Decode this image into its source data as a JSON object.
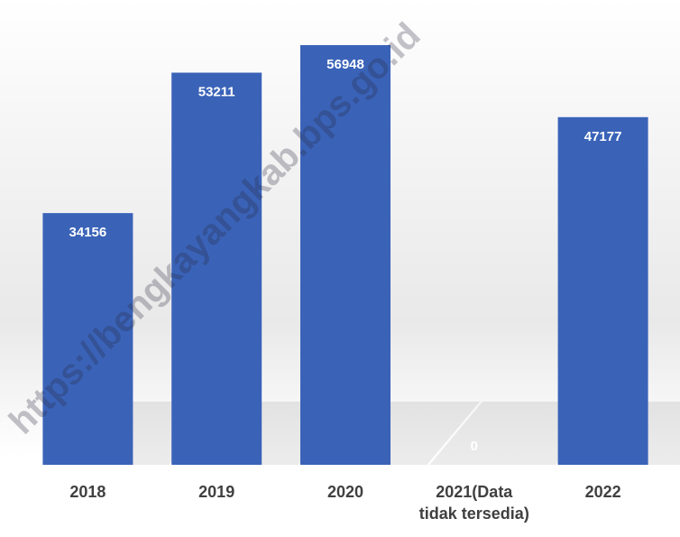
{
  "chart_data": {
    "type": "bar",
    "categories": [
      "2018",
      "2019",
      "2020",
      "2021(Data tidak tersedia)",
      "2022"
    ],
    "values": [
      34156,
      53211,
      56948,
      0,
      47177
    ],
    "color": "#3a63b8",
    "watermark": "https://bengkayangkab.bps.go.id"
  }
}
